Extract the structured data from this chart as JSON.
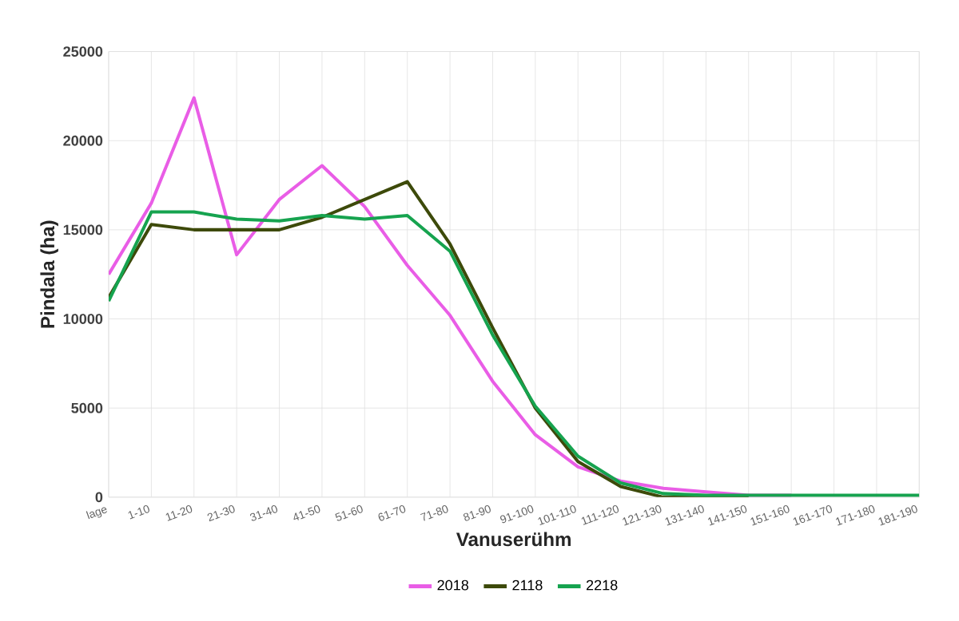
{
  "chart_data": {
    "type": "line",
    "xlabel": "Vanuserühm",
    "ylabel": "Pindala (ha)",
    "categories": [
      "lage",
      "1-10",
      "11-20",
      "21-30",
      "31-40",
      "41-50",
      "51-60",
      "61-70",
      "71-80",
      "81-90",
      "91-100",
      "101-110",
      "111-120",
      "121-130",
      "131-140",
      "141-150",
      "151-160",
      "161-170",
      "171-180",
      "181-190"
    ],
    "series": [
      {
        "name": "2018",
        "color": "#e95de6",
        "values": [
          12500,
          16500,
          22400,
          13600,
          16700,
          18600,
          16300,
          13000,
          10200,
          6500,
          3500,
          1700,
          900,
          500,
          300,
          100,
          100,
          null,
          null,
          null
        ]
      },
      {
        "name": "2118",
        "color": "#3d4a0a",
        "values": [
          11200,
          15300,
          15000,
          15000,
          15000,
          15700,
          16700,
          17700,
          14200,
          9500,
          5000,
          2000,
          600,
          0,
          0,
          0,
          null,
          null,
          null,
          null
        ]
      },
      {
        "name": "2218",
        "color": "#16a34f",
        "values": [
          11000,
          16000,
          16000,
          15600,
          15500,
          15800,
          15600,
          15800,
          13800,
          9100,
          5100,
          2300,
          800,
          200,
          100,
          100,
          100,
          100,
          100,
          100
        ]
      }
    ],
    "ylim": [
      0,
      25000
    ],
    "yticks": [
      0,
      5000,
      10000,
      15000,
      20000,
      25000
    ],
    "grid": true,
    "legend": "bottom",
    "marker": "none",
    "line_style": "solid"
  }
}
